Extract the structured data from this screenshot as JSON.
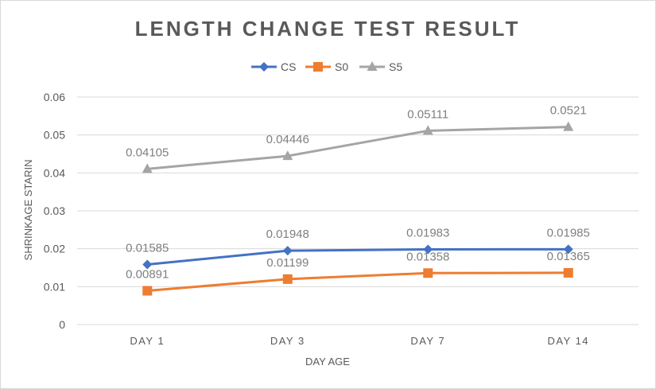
{
  "chart_data": {
    "type": "line",
    "title": "LENGTH CHANGE TEST RESULT",
    "xlabel": "DAY AGE",
    "ylabel": "SHRINKAGE STARIN",
    "categories": [
      "DAY 1",
      "DAY 3",
      "DAY 7",
      "DAY 14"
    ],
    "ylim": [
      0,
      0.06
    ],
    "yticks": [
      "0",
      "0.01",
      "0.02",
      "0.03",
      "0.04",
      "0.05",
      "0.06"
    ],
    "grid": true,
    "legend_position": "top",
    "series": [
      {
        "name": "CS",
        "color": "#4472c4",
        "marker": "diamond",
        "values": [
          0.01585,
          0.01948,
          0.01983,
          0.01985
        ],
        "labels": [
          "0.01585",
          "0.01948",
          "0.01983",
          "0.01985"
        ]
      },
      {
        "name": "S0",
        "color": "#ed7d31",
        "marker": "square",
        "values": [
          0.00891,
          0.01199,
          0.01358,
          0.01365
        ],
        "labels": [
          "0.00891",
          "0.01199",
          "0.01358",
          "0.01365"
        ]
      },
      {
        "name": "S5",
        "color": "#a5a5a5",
        "marker": "triangle",
        "values": [
          0.04105,
          0.04446,
          0.05111,
          0.0521
        ],
        "labels": [
          "0.04105",
          "0.04446",
          "0.05111",
          "0.0521"
        ]
      }
    ]
  }
}
